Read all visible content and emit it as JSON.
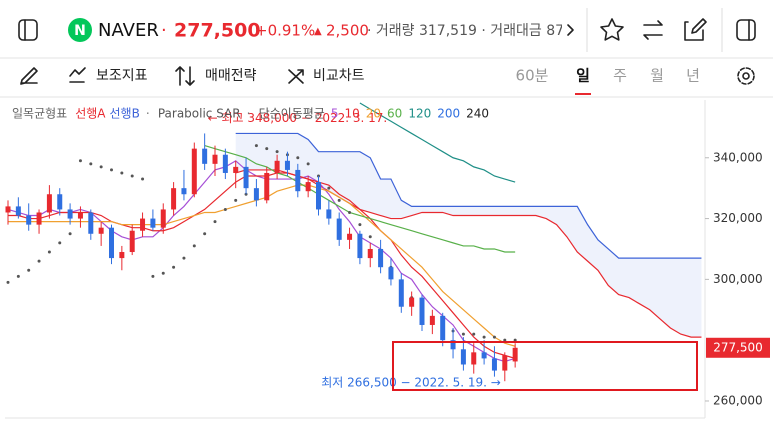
{
  "header": {
    "name": "NAVER",
    "price": "277,500",
    "change_pct": "+0.91%",
    "change": "2,500",
    "volume_info": "· 거래량 317,519 · 거래대금 87"
  },
  "toolbar": {
    "tools": [
      "보조지표",
      "매매전략",
      "비교차트"
    ],
    "periods": [
      "60분",
      "일",
      "주",
      "월",
      "년"
    ],
    "selected_period": 1
  },
  "chart_data": {
    "type": "candlestick",
    "indicator_title": "일목균형표",
    "sar_title": "Parabolic SAR",
    "ma_title": "단순이동평균",
    "up_color": "#e8292f",
    "down_color": "#2f6fe0",
    "ylim": [
      254400,
      359000
    ],
    "yticks": [
      {
        "value": 340000,
        "label": "340,000"
      },
      {
        "value": 320000,
        "label": "320,000"
      },
      {
        "value": 300000,
        "label": "300,000"
      },
      {
        "value": 260000,
        "label": "260,000"
      }
    ],
    "current_price": {
      "value": 277500,
      "label": "277,500"
    },
    "annotations": [
      {
        "value": 348000,
        "label": "← 최고 348,000 − 2022. 3. 17.",
        "color": "#e8292f"
      },
      {
        "value": 266500,
        "label": "최저 266,500 − 2022. 5. 19. →",
        "color": "#2f6fe0"
      }
    ],
    "open": [
      322000,
      324000,
      321000,
      318000,
      322000,
      328000,
      323000,
      320000,
      322000,
      315000,
      317000,
      307000,
      309000,
      316000,
      320000,
      317000,
      323000,
      330000,
      328000,
      343000,
      338000,
      341000,
      335000,
      337000,
      330000,
      326000,
      335000,
      339000,
      336000,
      329000,
      332000,
      323000,
      320000,
      313000,
      315000,
      307000,
      310000,
      304000,
      300000,
      291000,
      294000,
      285000,
      288000,
      280000,
      277000,
      272000,
      276000,
      274000,
      270000,
      273000
    ],
    "high": [
      326000,
      327000,
      325000,
      323000,
      331000,
      330000,
      325000,
      324000,
      323000,
      319000,
      318000,
      311000,
      318000,
      322000,
      323000,
      325000,
      332000,
      336000,
      345000,
      348000,
      344000,
      343000,
      339000,
      340000,
      333000,
      337000,
      341000,
      342000,
      338000,
      334000,
      334000,
      326000,
      322000,
      317000,
      316000,
      312000,
      313000,
      307000,
      302000,
      296000,
      295000,
      290000,
      289000,
      284000,
      281000,
      279000,
      280000,
      278000,
      276000,
      279000
    ],
    "low": [
      318000,
      320000,
      316000,
      315000,
      320000,
      321000,
      318000,
      317000,
      313000,
      311000,
      305000,
      303000,
      308000,
      314000,
      316000,
      315000,
      321000,
      326000,
      327000,
      336000,
      334000,
      333000,
      330000,
      328000,
      324000,
      325000,
      333000,
      334000,
      327000,
      327000,
      321000,
      318000,
      311000,
      310000,
      305000,
      304000,
      302000,
      298000,
      289000,
      288000,
      283000,
      282000,
      278000,
      274000,
      270000,
      269000,
      272000,
      268000,
      266500,
      271000
    ],
    "close": [
      324000,
      321000,
      318000,
      322000,
      328000,
      323000,
      320000,
      322000,
      315000,
      317000,
      307000,
      309000,
      316000,
      320000,
      317000,
      323000,
      330000,
      328000,
      343000,
      338000,
      341000,
      335000,
      337000,
      330000,
      326000,
      335000,
      339000,
      336000,
      329000,
      332000,
      323000,
      320000,
      313000,
      315000,
      307000,
      310000,
      304000,
      300000,
      291000,
      294000,
      285000,
      288000,
      280000,
      277000,
      272000,
      276000,
      274000,
      270000,
      275000,
      277500
    ],
    "cloud": [
      {
        "name": "선행A",
        "color": "#e8292f",
        "values": [
          null,
          null,
          null,
          null,
          null,
          null,
          null,
          null,
          null,
          null,
          null,
          null,
          null,
          null,
          null,
          null,
          null,
          null,
          null,
          null,
          null,
          null,
          335000,
          336000,
          336000,
          336000,
          336000,
          335000,
          334000,
          333000,
          331000,
          329000,
          327000,
          325000,
          323000,
          322000,
          321000,
          320000,
          320000,
          321000,
          322000,
          322000,
          322000,
          321000,
          321000,
          321000,
          321000,
          321000,
          321000,
          321000,
          321000,
          321000,
          320000,
          318000,
          314000,
          309000,
          306000,
          303000,
          298000,
          295000,
          294000,
          292000,
          290000,
          287000,
          284000,
          282000,
          281000,
          281000
        ]
      },
      {
        "name": "선행B",
        "color": "#3d63d8",
        "values": [
          null,
          null,
          null,
          null,
          null,
          null,
          null,
          null,
          null,
          null,
          null,
          null,
          null,
          null,
          null,
          null,
          null,
          null,
          null,
          null,
          null,
          null,
          348000,
          348000,
          348000,
          348000,
          348000,
          348000,
          348000,
          346000,
          342000,
          342000,
          342000,
          342000,
          342000,
          340000,
          333000,
          333000,
          326000,
          324000,
          324000,
          324000,
          324000,
          324000,
          324000,
          324000,
          324000,
          324000,
          324000,
          324000,
          324000,
          324000,
          324000,
          324000,
          324000,
          324000,
          318000,
          313000,
          310000,
          307000,
          307000,
          307000,
          307000,
          307000,
          307000,
          307000,
          307000,
          307000
        ]
      }
    ],
    "sar": {
      "color": "#555555",
      "values": [
        299000,
        301000,
        303000,
        306000,
        309000,
        312000,
        315000,
        339000,
        338000,
        337000,
        336000,
        335000,
        334000,
        333000,
        301000,
        302000,
        304000,
        307000,
        311000,
        315000,
        319000,
        323000,
        326000,
        328000,
        344000,
        343000,
        342000,
        341000,
        340000,
        338000,
        334000,
        330000,
        326000,
        322000,
        318000,
        314000,
        309000,
        304000,
        299000,
        294000,
        289000,
        286000,
        284000,
        283000,
        282000,
        282000,
        281000,
        281000,
        280000,
        280000
      ]
    },
    "ma": [
      {
        "name": "5",
        "color": "#a64fd6",
        "values": [
          323000,
          322000,
          321000,
          321000,
          323000,
          322000,
          322000,
          323000,
          322000,
          319000,
          316000,
          314000,
          313000,
          314000,
          314000,
          317000,
          321000,
          324000,
          328000,
          332000,
          336000,
          337000,
          339000,
          336000,
          334000,
          333000,
          333000,
          333000,
          333000,
          334000,
          332000,
          328000,
          323000,
          319000,
          314000,
          312000,
          310000,
          307000,
          302000,
          300000,
          295000,
          291000,
          288000,
          285000,
          280000,
          278000,
          276000,
          274000,
          273000,
          274000
        ]
      },
      {
        "name": "10",
        "color": "#e8292f",
        "values": [
          321000,
          321000,
          320000,
          320000,
          321000,
          322000,
          322000,
          322000,
          322000,
          321000,
          319000,
          318000,
          317000,
          317000,
          316000,
          316000,
          317000,
          319000,
          321000,
          323000,
          326000,
          329000,
          332000,
          334000,
          334000,
          334000,
          335000,
          335000,
          334000,
          333000,
          332000,
          331000,
          328000,
          326000,
          323000,
          320000,
          316000,
          313000,
          308000,
          304000,
          301000,
          297000,
          293000,
          289000,
          285000,
          281000,
          278000,
          276000,
          275000,
          274000
        ]
      },
      {
        "name": "20",
        "color": "#f0a030",
        "values": [
          319000,
          319000,
          319000,
          319000,
          319000,
          319000,
          319000,
          319000,
          319000,
          319000,
          319000,
          318000,
          318000,
          318000,
          318000,
          318000,
          319000,
          320000,
          321000,
          322000,
          322000,
          323000,
          324000,
          325000,
          326000,
          327000,
          329000,
          330000,
          331000,
          331000,
          330000,
          329000,
          327000,
          325000,
          322000,
          319000,
          316000,
          313000,
          310000,
          307000,
          304000,
          300000,
          296000,
          293000,
          290000,
          287000,
          284000,
          281000,
          279000,
          278000
        ]
      },
      {
        "name": "60",
        "color": "#58b049",
        "values": [
          null,
          null,
          null,
          null,
          null,
          null,
          null,
          null,
          null,
          null,
          null,
          null,
          null,
          null,
          null,
          null,
          null,
          null,
          null,
          344000,
          343000,
          342000,
          341000,
          340000,
          338000,
          337000,
          335000,
          334000,
          332000,
          330000,
          328000,
          326000,
          324000,
          322000,
          321000,
          320000,
          319000,
          318000,
          317000,
          316000,
          315000,
          314000,
          313000,
          312000,
          311000,
          311000,
          310000,
          310000,
          309000,
          309000
        ]
      },
      {
        "name": "120",
        "color": "#1f8f87",
        "values": [
          null,
          null,
          null,
          null,
          null,
          null,
          null,
          null,
          null,
          null,
          null,
          null,
          null,
          null,
          null,
          null,
          null,
          null,
          null,
          null,
          null,
          null,
          null,
          null,
          null,
          null,
          null,
          null,
          null,
          null,
          null,
          null,
          null,
          null,
          358000,
          356000,
          354000,
          352000,
          350000,
          348000,
          346000,
          344000,
          342000,
          340000,
          339000,
          337000,
          336000,
          334000,
          333000,
          332000
        ]
      }
    ],
    "ma_legend": [
      {
        "name": "200",
        "color": "#2f6fe0"
      },
      {
        "name": "240",
        "color": "#222222"
      }
    ]
  }
}
